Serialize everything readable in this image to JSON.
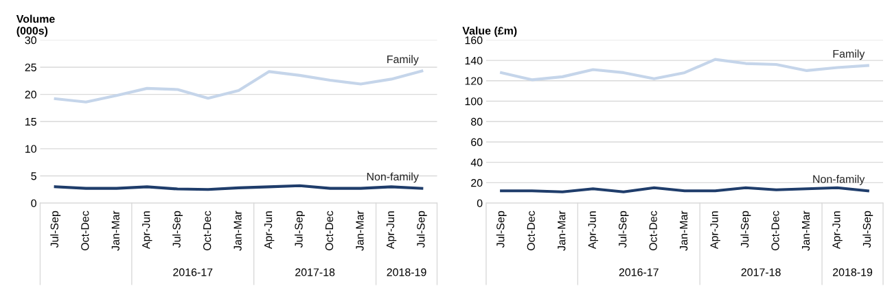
{
  "chart_data": [
    {
      "type": "line",
      "ylabel": "Volume\n(000s)",
      "categories": [
        "Jul-Sep",
        "Oct-Dec",
        "Jan-Mar",
        "Apr-Jun",
        "Jul-Sep",
        "Oct-Dec",
        "Jan-Mar",
        "Apr-Jun",
        "Jul-Sep",
        "Oct-Dec",
        "Jan-Mar",
        "Apr-Jun",
        "Jul-Sep"
      ],
      "series": [
        {
          "name": "Family",
          "color": "#c5d5ea",
          "values": [
            19.2,
            18.6,
            19.8,
            21.1,
            20.9,
            19.3,
            20.7,
            24.2,
            23.5,
            22.6,
            21.9,
            22.8,
            24.3
          ]
        },
        {
          "name": "Non-family",
          "color": "#1f3d6b",
          "values": [
            3.0,
            2.7,
            2.7,
            3.0,
            2.6,
            2.5,
            2.8,
            3.0,
            3.2,
            2.7,
            2.7,
            3.0,
            2.7
          ]
        }
      ],
      "ylim": [
        0,
        30
      ],
      "yticks": [
        0,
        5,
        10,
        15,
        20,
        25,
        30
      ],
      "grid": "y",
      "legend": false,
      "marker": "none",
      "line_style": "solid",
      "annotations": [
        "2016-17",
        "2017-18",
        "2018-19"
      ]
    },
    {
      "type": "line",
      "ylabel": "Value (£m)",
      "categories": [
        "Jul-Sep",
        "Oct-Dec",
        "Jan-Mar",
        "Apr-Jun",
        "Jul-Sep",
        "Oct-Dec",
        "Jan-Mar",
        "Apr-Jun",
        "Jul-Sep",
        "Oct-Dec",
        "Jan-Mar",
        "Apr-Jun",
        "Jul-Sep"
      ],
      "series": [
        {
          "name": "Family",
          "color": "#c5d5ea",
          "values": [
            128,
            121,
            124,
            131,
            128,
            122,
            128,
            141,
            137,
            136,
            130,
            133,
            135
          ]
        },
        {
          "name": "Non-family",
          "color": "#1f3d6b",
          "values": [
            12,
            12,
            11,
            14,
            11,
            15,
            12,
            12,
            15,
            13,
            14,
            15,
            12
          ]
        }
      ],
      "ylim": [
        0,
        160
      ],
      "yticks": [
        0,
        20,
        40,
        60,
        80,
        100,
        120,
        140,
        160
      ],
      "grid": "y",
      "legend": false,
      "marker": "none",
      "line_style": "solid",
      "annotations": [
        "2016-17",
        "2017-18",
        "2018-19"
      ]
    }
  ]
}
